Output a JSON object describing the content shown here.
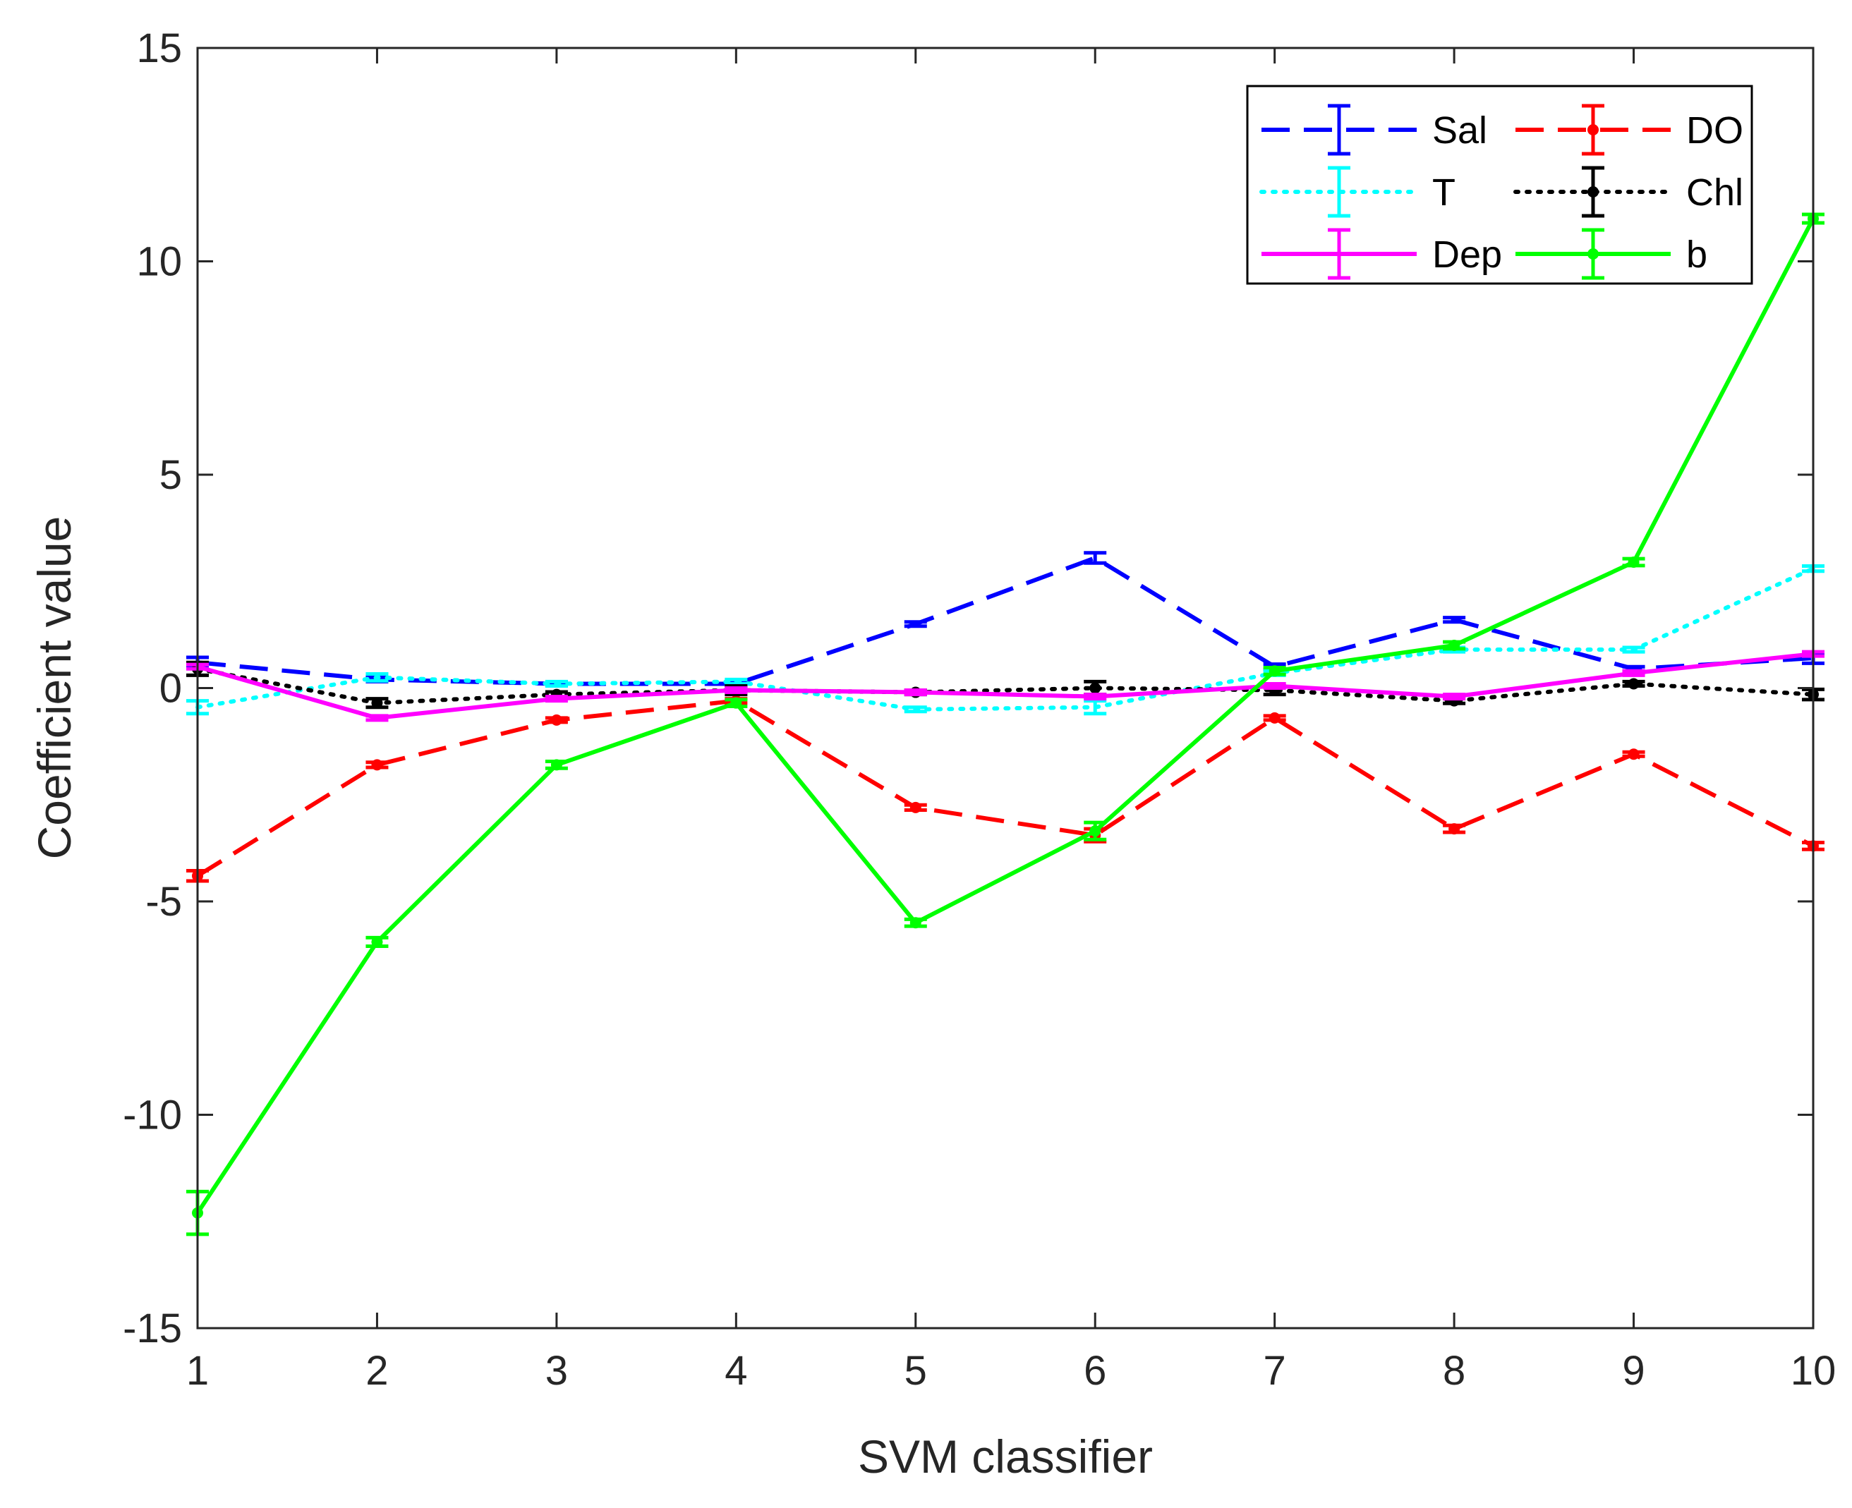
{
  "chart_data": {
    "type": "line",
    "title": "",
    "xlabel": "SVM classifier",
    "ylabel": "Coefficient value",
    "x": [
      1,
      2,
      3,
      4,
      5,
      6,
      7,
      8,
      9,
      10
    ],
    "xlim": [
      1,
      10
    ],
    "ylim": [
      -15,
      15
    ],
    "xticks": [
      "1",
      "2",
      "3",
      "4",
      "5",
      "6",
      "7",
      "8",
      "9",
      "10"
    ],
    "yticks": [
      "-15",
      "-10",
      "-5",
      "0",
      "5",
      "10",
      "15"
    ],
    "grid": false,
    "legend_position": "top-right",
    "legend_columns": 2,
    "series": [
      {
        "name": "Sal",
        "color": "#0000ff",
        "line_style": "dashed",
        "marker": "none",
        "values": [
          0.6,
          0.2,
          0.1,
          0.1,
          1.5,
          3.05,
          0.5,
          1.6,
          0.45,
          0.7
        ],
        "errors": [
          0.12,
          0.05,
          0.04,
          0.05,
          0.05,
          0.12,
          0.06,
          0.05,
          0.05,
          0.12
        ]
      },
      {
        "name": "DO",
        "color": "#ff0000",
        "line_style": "dashed",
        "marker": "dot",
        "values": [
          -4.4,
          -1.8,
          -0.75,
          -0.3,
          -2.8,
          -3.45,
          -0.7,
          -3.3,
          -1.55,
          -3.7
        ],
        "errors": [
          0.12,
          0.06,
          0.05,
          0.05,
          0.06,
          0.15,
          0.05,
          0.08,
          0.05,
          0.08
        ]
      },
      {
        "name": "T",
        "color": "#00ffff",
        "line_style": "dotted",
        "marker": "none",
        "values": [
          -0.45,
          0.25,
          0.1,
          0.15,
          -0.5,
          -0.45,
          0.35,
          0.9,
          0.9,
          2.8
        ],
        "errors": [
          0.15,
          0.08,
          0.05,
          0.05,
          0.05,
          0.15,
          0.05,
          0.05,
          0.05,
          0.06
        ]
      },
      {
        "name": "Chl",
        "color": "#000000",
        "line_style": "dotted",
        "marker": "dot",
        "values": [
          0.45,
          -0.35,
          -0.15,
          -0.05,
          -0.1,
          0.0,
          -0.05,
          -0.3,
          0.1,
          -0.15
        ],
        "errors": [
          0.15,
          0.1,
          0.06,
          0.1,
          0.05,
          0.15,
          0.1,
          0.06,
          0.05,
          0.12
        ]
      },
      {
        "name": "Dep",
        "color": "#ff00ff",
        "line_style": "solid",
        "marker": "none",
        "values": [
          0.5,
          -0.7,
          -0.25,
          -0.05,
          -0.1,
          -0.2,
          0.05,
          -0.2,
          0.35,
          0.8
        ],
        "errors": [
          0.05,
          0.05,
          0.05,
          0.05,
          0.05,
          0.05,
          0.05,
          0.05,
          0.05,
          0.05
        ]
      },
      {
        "name": "b",
        "color": "#00ff00",
        "line_style": "solid",
        "marker": "dot",
        "values": [
          -12.3,
          -5.95,
          -1.8,
          -0.35,
          -5.5,
          -3.35,
          0.4,
          1.0,
          2.95,
          11.0
        ],
        "errors": [
          0.5,
          0.1,
          0.08,
          0.08,
          0.08,
          0.2,
          0.08,
          0.08,
          0.08,
          0.1
        ]
      }
    ]
  }
}
